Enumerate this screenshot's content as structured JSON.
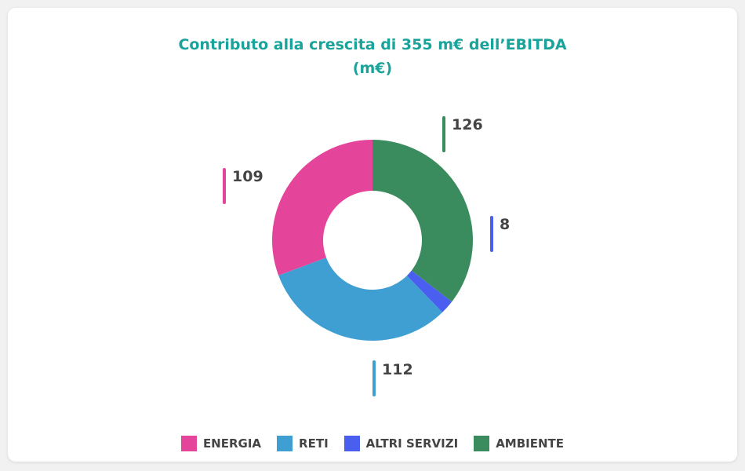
{
  "chart_data": {
    "type": "pie",
    "subtype": "donut",
    "title": "Contributo alla crescita di 355 m€ dell’EBITDA",
    "subtitle": "(m€)",
    "categories": [
      "AMBIENTE",
      "ALTRI SERVIZI",
      "RETI",
      "ENERGIA"
    ],
    "values": [
      126,
      8,
      112,
      109
    ],
    "labels": [
      "126",
      "8",
      "112",
      "109"
    ],
    "colors": [
      "#3a8c5e",
      "#4a5ff0",
      "#3f9fd3",
      "#e4449a"
    ],
    "legend": [
      "ENERGIA",
      "RETI",
      "ALTRI SERVIZI",
      "AMBIENTE"
    ],
    "legend_colors": [
      "#e4449a",
      "#3f9fd3",
      "#4a5ff0",
      "#3a8c5e"
    ],
    "legend_position": "bottom"
  }
}
